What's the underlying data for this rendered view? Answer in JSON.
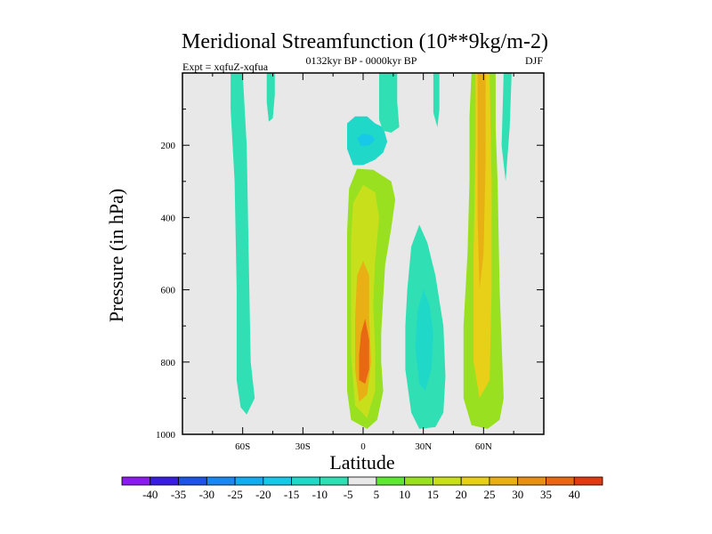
{
  "chart_data": {
    "type": "heatmap",
    "title": "Meridional Streamfunction (10**9kg/m-2)",
    "subtitle": "0132kyr BP - 0000kyr BP",
    "left_label": "Expt = xqfuZ-xqfua",
    "right_label": "DJF",
    "xlabel": "Latitude",
    "ylabel": "Pressure (in hPa)",
    "xlim": [
      -90,
      90
    ],
    "ylim": [
      0,
      1000
    ],
    "y_inverted": true,
    "x_ticks": [
      {
        "value": -60,
        "label": "60S"
      },
      {
        "value": -30,
        "label": "30S"
      },
      {
        "value": 0,
        "label": "0"
      },
      {
        "value": 30,
        "label": "30N"
      },
      {
        "value": 60,
        "label": "60N"
      }
    ],
    "y_ticks": [
      {
        "value": 200,
        "label": "200"
      },
      {
        "value": 400,
        "label": "400"
      },
      {
        "value": 600,
        "label": "600"
      },
      {
        "value": 800,
        "label": "800"
      },
      {
        "value": 1000,
        "label": "1000"
      }
    ],
    "background_color": "#e8e8e8",
    "colorbar": {
      "boundaries": [
        -45,
        -40,
        -35,
        -30,
        -25,
        -20,
        -15,
        -10,
        -5,
        5,
        10,
        15,
        20,
        25,
        30,
        35,
        40,
        45
      ],
      "labels": [
        "-40",
        "-35",
        "-30",
        "-25",
        "-20",
        "-15",
        "-10",
        "-5",
        "5",
        "10",
        "15",
        "20",
        "25",
        "30",
        "35",
        "40"
      ],
      "colors": [
        "#8a1cf0",
        "#3a1ee0",
        "#1f52e6",
        "#1a88f0",
        "#13acf0",
        "#18c8e8",
        "#1fd8c8",
        "#30e0b4",
        "#e8e8e8",
        "#5ee832",
        "#98e020",
        "#c8e01c",
        "#e8d018",
        "#e8b014",
        "#e89014",
        "#e86814",
        "#e03a10"
      ]
    },
    "regions": [
      {
        "label": "Band near 60S",
        "value": -7,
        "lat": [
          -65,
          -55
        ],
        "p": [
          0,
          940
        ],
        "points": [
          [
            -66,
            0
          ],
          [
            -60,
            0
          ],
          [
            -58,
            200
          ],
          [
            -57,
            500
          ],
          [
            -56,
            800
          ],
          [
            -54,
            900
          ],
          [
            -58,
            945
          ],
          [
            -61,
            925
          ],
          [
            -63,
            850
          ],
          [
            -63,
            600
          ],
          [
            -64,
            300
          ],
          [
            -66,
            100
          ]
        ]
      },
      {
        "label": "Band near 45S",
        "value": -7,
        "lat": [
          -48,
          -44
        ],
        "p": [
          0,
          140
        ],
        "points": [
          [
            -48,
            0
          ],
          [
            -44,
            0
          ],
          [
            -44,
            60
          ],
          [
            -45,
            125
          ],
          [
            -47,
            135
          ],
          [
            -48,
            80
          ]
        ]
      },
      {
        "label": "Upper tropical negative cell",
        "value": -12,
        "lat": [
          -8,
          10
        ],
        "p": [
          120,
          265
        ],
        "points": [
          [
            -8,
            140
          ],
          [
            -4,
            120
          ],
          [
            2,
            120
          ],
          [
            6,
            140
          ],
          [
            10,
            150
          ],
          [
            12,
            190
          ],
          [
            10,
            220
          ],
          [
            6,
            240
          ],
          [
            0,
            255
          ],
          [
            -5,
            255
          ],
          [
            -8,
            210
          ]
        ]
      },
      {
        "label": "Upper tropical core",
        "value": -17,
        "lat": [
          -2,
          5
        ],
        "p": [
          160,
          205
        ],
        "points": [
          [
            -3,
            180
          ],
          [
            0,
            168
          ],
          [
            4,
            172
          ],
          [
            6,
            185
          ],
          [
            3,
            200
          ],
          [
            -1,
            202
          ]
        ]
      },
      {
        "label": "Column above equator",
        "value": -7,
        "lat": [
          8,
          18
        ],
        "p": [
          0,
          160
        ],
        "points": [
          [
            8,
            0
          ],
          [
            17,
            0
          ],
          [
            17,
            80
          ],
          [
            18,
            150
          ],
          [
            14,
            165
          ],
          [
            10,
            160
          ],
          [
            8,
            130
          ]
        ]
      },
      {
        "label": "Main positive cell near equator",
        "value": 10,
        "lat": [
          -8,
          15
        ],
        "p": [
          260,
          985
        ],
        "points": [
          [
            -7,
            320
          ],
          [
            -3,
            265
          ],
          [
            5,
            268
          ],
          [
            14,
            300
          ],
          [
            16,
            350
          ],
          [
            14,
            430
          ],
          [
            11,
            530
          ],
          [
            10,
            620
          ],
          [
            9,
            720
          ],
          [
            9,
            800
          ],
          [
            10,
            880
          ],
          [
            7,
            960
          ],
          [
            2,
            985
          ],
          [
            -6,
            960
          ],
          [
            -8,
            880
          ],
          [
            -8,
            720
          ],
          [
            -8,
            560
          ],
          [
            -8,
            440
          ]
        ]
      },
      {
        "label": "Main cell inner 15",
        "value": 15,
        "lat": [
          -6,
          8
        ],
        "p": [
          310,
          960
        ],
        "points": [
          [
            -5,
            360
          ],
          [
            0,
            310
          ],
          [
            6,
            330
          ],
          [
            8,
            400
          ],
          [
            6,
            520
          ],
          [
            5,
            640
          ],
          [
            6,
            760
          ],
          [
            6,
            880
          ],
          [
            2,
            955
          ],
          [
            -4,
            920
          ],
          [
            -6,
            780
          ],
          [
            -6,
            600
          ],
          [
            -6,
            460
          ]
        ]
      },
      {
        "label": "Main cell inner 25",
        "value": 25,
        "lat": [
          -4,
          4
        ],
        "p": [
          520,
          920
        ],
        "points": [
          [
            -3,
            560
          ],
          [
            0,
            520
          ],
          [
            3,
            560
          ],
          [
            3,
            680
          ],
          [
            4,
            800
          ],
          [
            2,
            890
          ],
          [
            -2,
            910
          ],
          [
            -4,
            820
          ],
          [
            -4,
            680
          ]
        ]
      },
      {
        "label": "Main cell core",
        "value": 35,
        "lat": [
          -2,
          3
        ],
        "p": [
          680,
          860
        ],
        "points": [
          [
            -1,
            720
          ],
          [
            1,
            680
          ],
          [
            3,
            740
          ],
          [
            3,
            820
          ],
          [
            1,
            860
          ],
          [
            -2,
            850
          ],
          [
            -2,
            780
          ]
        ]
      },
      {
        "label": "Subtropical negative cell 30N",
        "value": -10,
        "lat": [
          20,
          42
        ],
        "p": [
          420,
          985
        ],
        "points": [
          [
            22,
            600
          ],
          [
            24,
            480
          ],
          [
            28,
            420
          ],
          [
            32,
            470
          ],
          [
            36,
            560
          ],
          [
            40,
            700
          ],
          [
            41,
            840
          ],
          [
            40,
            940
          ],
          [
            36,
            980
          ],
          [
            28,
            985
          ],
          [
            24,
            940
          ],
          [
            21,
            820
          ],
          [
            21,
            700
          ]
        ]
      },
      {
        "label": "Subtropical negative core",
        "value": -15,
        "lat": [
          26,
          36
        ],
        "p": [
          600,
          880
        ],
        "points": [
          [
            27,
            660
          ],
          [
            30,
            600
          ],
          [
            33,
            640
          ],
          [
            35,
            720
          ],
          [
            34,
            820
          ],
          [
            31,
            880
          ],
          [
            28,
            860
          ],
          [
            26,
            760
          ]
        ]
      },
      {
        "label": "Narrow band 38N",
        "value": -7,
        "lat": [
          34,
          38
        ],
        "p": [
          0,
          150
        ],
        "points": [
          [
            35,
            0
          ],
          [
            38,
            0
          ],
          [
            38,
            100
          ],
          [
            37,
            150
          ],
          [
            35,
            110
          ]
        ]
      },
      {
        "label": "Northern positive band 60N",
        "value": 10,
        "lat": [
          48,
          74
        ],
        "p": [
          0,
          980
        ],
        "points": [
          [
            54,
            0
          ],
          [
            66,
            0
          ],
          [
            66,
            150
          ],
          [
            67,
            300
          ],
          [
            68,
            600
          ],
          [
            70,
            900
          ],
          [
            68,
            960
          ],
          [
            62,
            985
          ],
          [
            54,
            975
          ],
          [
            50,
            900
          ],
          [
            50,
            700
          ],
          [
            52,
            500
          ],
          [
            53,
            300
          ],
          [
            53,
            120
          ]
        ]
      },
      {
        "label": "Northern band inner 20",
        "value": 20,
        "lat": [
          54,
          64
        ],
        "p": [
          0,
          900
        ],
        "points": [
          [
            56,
            0
          ],
          [
            63,
            0
          ],
          [
            64,
            300
          ],
          [
            64,
            600
          ],
          [
            63,
            850
          ],
          [
            58,
            900
          ],
          [
            55,
            800
          ],
          [
            55,
            500
          ],
          [
            56,
            200
          ]
        ]
      },
      {
        "label": "Northern band core",
        "value": 28,
        "lat": [
          57,
          61
        ],
        "p": [
          0,
          600
        ],
        "points": [
          [
            57,
            0
          ],
          [
            61,
            0
          ],
          [
            61,
            250
          ],
          [
            60,
            500
          ],
          [
            58,
            600
          ],
          [
            57,
            400
          ],
          [
            57,
            200
          ]
        ]
      },
      {
        "label": "Sliver near 70N",
        "value": -7,
        "lat": [
          69,
          74
        ],
        "p": [
          0,
          300
        ],
        "points": [
          [
            70,
            0
          ],
          [
            74,
            0
          ],
          [
            73,
            150
          ],
          [
            71,
            300
          ],
          [
            69,
            200
          ]
        ]
      }
    ]
  }
}
